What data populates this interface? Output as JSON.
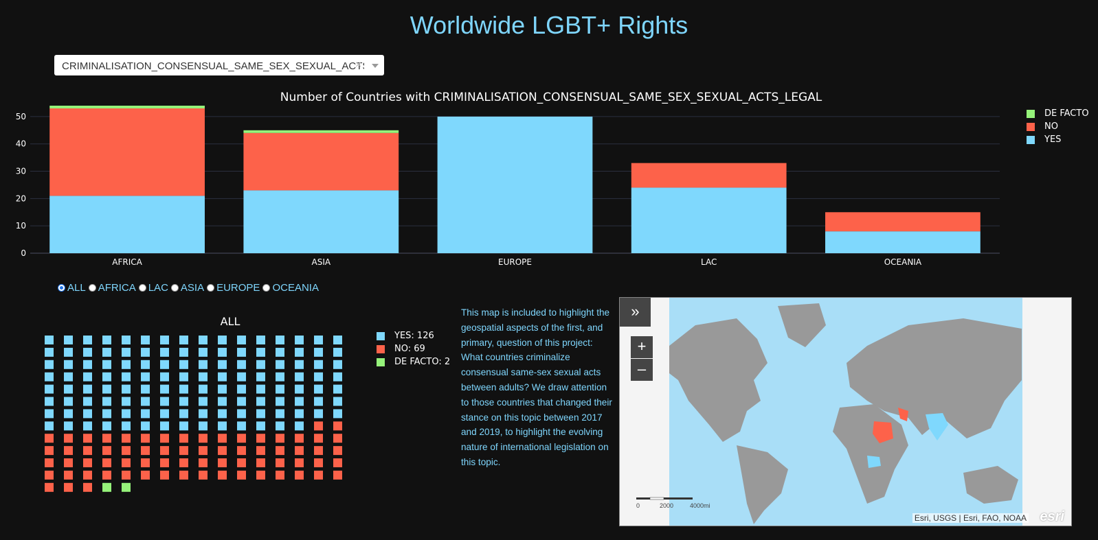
{
  "page": {
    "title": "Worldwide LGBT+ Rights"
  },
  "dropdown": {
    "selected": "CRIMINALISATION_CONSENSUAL_SAME_SEX_SEXUAL_ACTS_LEGAL",
    "clear_icon": "×"
  },
  "colors": {
    "yes": "#7fd8fd",
    "no": "#fd624a",
    "de_facto": "#95f27a",
    "accent": "#7fd6fd",
    "background": "#111111"
  },
  "chart_data": [
    {
      "type": "bar",
      "stacked": true,
      "title": "Number of Countries with CRIMINALISATION_CONSENSUAL_SAME_SEX_SEXUAL_ACTS_LEGAL",
      "categories": [
        "AFRICA",
        "ASIA",
        "EUROPE",
        "LAC",
        "OCEANIA"
      ],
      "series": [
        {
          "name": "YES",
          "color": "#7fd8fd",
          "values": [
            21,
            23,
            50,
            24,
            8
          ]
        },
        {
          "name": "NO",
          "color": "#fd624a",
          "values": [
            32,
            21,
            0,
            9,
            7
          ]
        },
        {
          "name": "DE FACTO",
          "color": "#95f27a",
          "values": [
            1,
            1,
            0,
            0,
            0
          ]
        }
      ],
      "legend_order": [
        "DE FACTO",
        "NO",
        "YES"
      ],
      "yticks": [
        0,
        10,
        20,
        30,
        40,
        50
      ],
      "ylim": [
        0,
        54
      ],
      "grid": true,
      "legend": "top-right"
    },
    {
      "type": "waffle",
      "title": "ALL",
      "columns": 16,
      "series": [
        {
          "name": "YES",
          "label": "YES: 126",
          "count": 126,
          "color": "#7fd8fd"
        },
        {
          "name": "NO",
          "label": "NO: 69",
          "count": 69,
          "color": "#fd624a"
        },
        {
          "name": "DE FACTO",
          "label": "DE FACTO: 2",
          "count": 2,
          "color": "#95f27a"
        }
      ]
    }
  ],
  "region_filter": {
    "selected": "ALL",
    "options": [
      "ALL",
      "AFRICA",
      "LAC",
      "ASIA",
      "EUROPE",
      "OCEANIA"
    ]
  },
  "map_description": "This map is included to highlight the geospatial aspects of the first, and primary, question of this project: What countries criminalize consensual same-sex sexual acts between adults? We draw attention to those countries that changed their stance on this topic between 2017 and 2019, to highlight the evolving nature of international legislation on this topic.",
  "map": {
    "expand_icon": "»",
    "zoom_in": "+",
    "zoom_out": "–",
    "scale_labels": [
      "0",
      "2000",
      "4000mi"
    ],
    "attribution": "Esri, USGS | Esri, FAO, NOAA",
    "logo": "esri"
  }
}
